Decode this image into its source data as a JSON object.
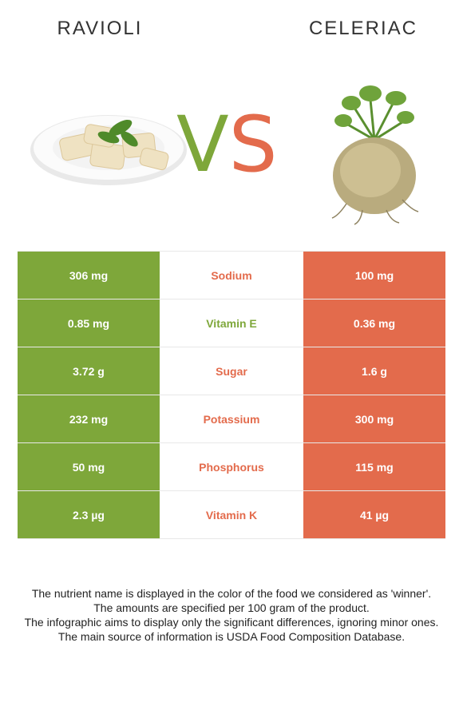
{
  "left_food": "RAVIOLI",
  "right_food": "CELERIAC",
  "vs": {
    "v": "V",
    "s": "S"
  },
  "colors": {
    "winner_left": "#7ea73a",
    "winner_right": "#e36b4c"
  },
  "rows": [
    {
      "left": "306 mg",
      "nutrient": "Sodium",
      "right": "100 mg",
      "winner": "right"
    },
    {
      "left": "0.85 mg",
      "nutrient": "Vitamin E",
      "right": "0.36 mg",
      "winner": "left"
    },
    {
      "left": "3.72 g",
      "nutrient": "Sugar",
      "right": "1.6 g",
      "winner": "right"
    },
    {
      "left": "232 mg",
      "nutrient": "Potassium",
      "right": "300 mg",
      "winner": "right"
    },
    {
      "left": "50 mg",
      "nutrient": "Phosphorus",
      "right": "115 mg",
      "winner": "right"
    },
    {
      "left": "2.3 µg",
      "nutrient": "Vitamin K",
      "right": "41 µg",
      "winner": "right"
    }
  ],
  "footer": [
    "The nutrient name is displayed in the color of the food we considered as 'winner'.",
    "The amounts are specified per 100 gram of the product.",
    "The infographic aims to display only the significant differences, ignoring minor ones.",
    "The main source of information is USDA Food Composition Database."
  ]
}
